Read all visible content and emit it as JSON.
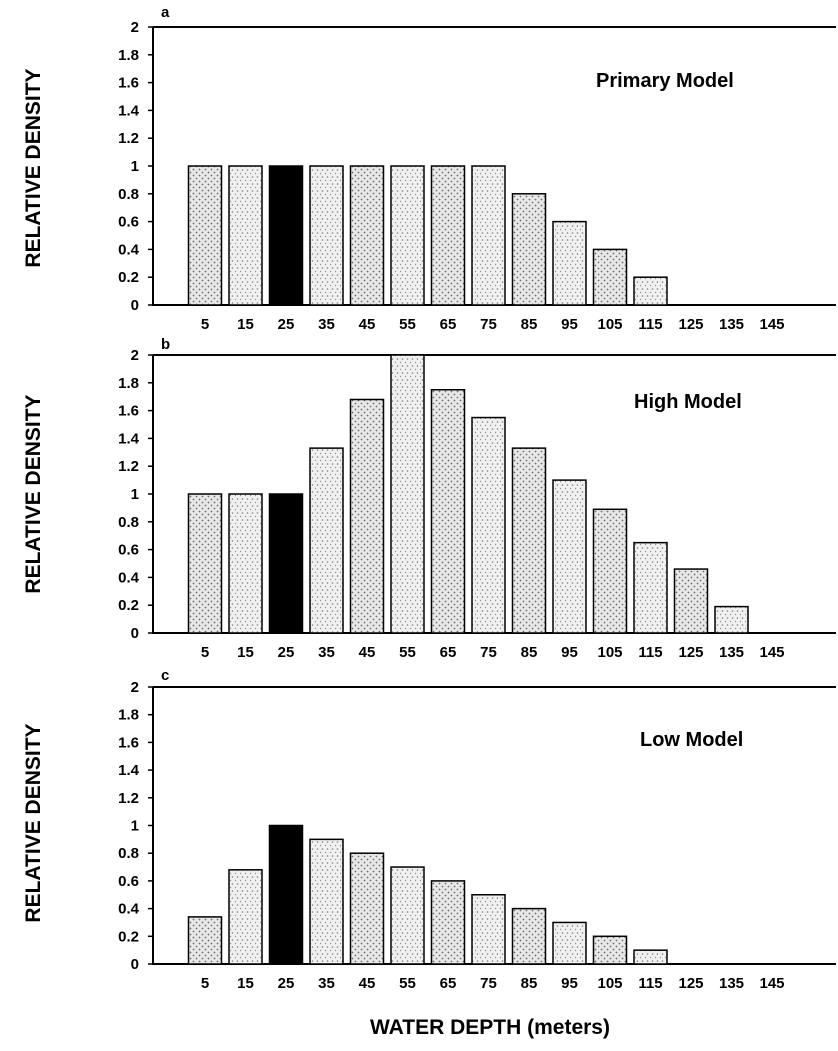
{
  "colors": {
    "highlight": "#000000",
    "bar_fill": "#e6e6e6",
    "stipple": "#6a6a6a",
    "axis": "#000000"
  },
  "xlabel": "WATER DEPTH (meters)",
  "chart_data": [
    {
      "type": "bar",
      "panel": "a",
      "title": "Primary Model",
      "ylabel": "RELATIVE DENSITY",
      "ylim": [
        0,
        2
      ],
      "yticks": [
        "0",
        "0.2",
        "0.4",
        "0.6",
        "0.8",
        "1",
        "1.2",
        "1.4",
        "1.6",
        "1.8",
        "2"
      ],
      "categories": [
        "5",
        "15",
        "25",
        "35",
        "45",
        "55",
        "65",
        "75",
        "85",
        "95",
        "105",
        "115",
        "125",
        "135",
        "145"
      ],
      "values": [
        1,
        1,
        1,
        1,
        1,
        1,
        1,
        1,
        0.8,
        0.6,
        0.4,
        0.2,
        0,
        0,
        0
      ],
      "highlight_category": "25"
    },
    {
      "type": "bar",
      "panel": "b",
      "title": "High Model",
      "ylabel": "RELATIVE DENSITY",
      "ylim": [
        0,
        2
      ],
      "yticks": [
        "0",
        "0.2",
        "0.4",
        "0.6",
        "0.8",
        "1",
        "1.2",
        "1.4",
        "1.6",
        "1.8",
        "2"
      ],
      "categories": [
        "5",
        "15",
        "25",
        "35",
        "45",
        "55",
        "65",
        "75",
        "85",
        "95",
        "105",
        "115",
        "125",
        "135",
        "145"
      ],
      "values": [
        1,
        1,
        1,
        1.33,
        1.68,
        2,
        1.75,
        1.55,
        1.33,
        1.1,
        0.89,
        0.65,
        0.46,
        0.19,
        0
      ],
      "highlight_category": "25"
    },
    {
      "type": "bar",
      "panel": "c",
      "title": "Low Model",
      "ylabel": "RELATIVE DENSITY",
      "ylim": [
        0,
        2
      ],
      "yticks": [
        "0",
        "0.2",
        "0.4",
        "0.6",
        "0.8",
        "1",
        "1.2",
        "1.4",
        "1.6",
        "1.8",
        "2"
      ],
      "categories": [
        "5",
        "15",
        "25",
        "35",
        "45",
        "55",
        "65",
        "75",
        "85",
        "95",
        "105",
        "115",
        "125",
        "135",
        "145"
      ],
      "values": [
        0.34,
        0.68,
        1,
        0.9,
        0.8,
        0.7,
        0.6,
        0.5,
        0.4,
        0.3,
        0.2,
        0.1,
        0,
        0,
        0
      ],
      "highlight_category": "25"
    }
  ]
}
